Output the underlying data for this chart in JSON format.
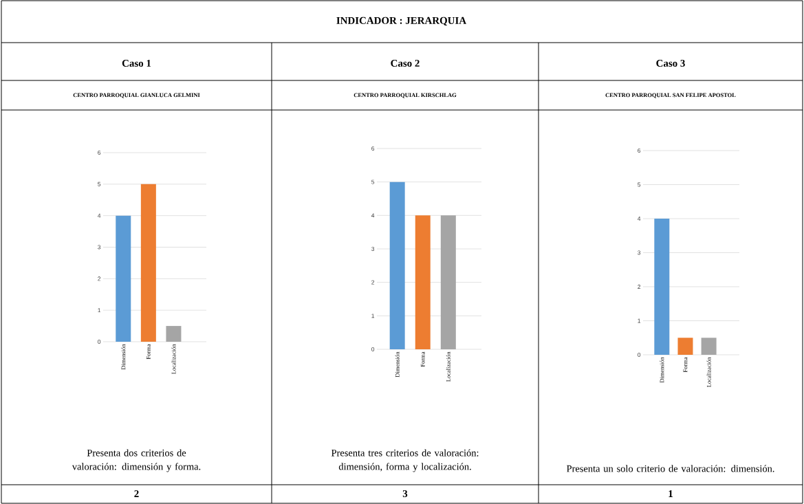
{
  "chart_data": [
    {
      "type": "bar",
      "title": "Caso 1",
      "subtitle": "CENTRO PARROQUIAL GIANLUCA GELMINI",
      "categories": [
        "Dimensión",
        "Forma",
        "Localización"
      ],
      "values": [
        4,
        5,
        0.5
      ],
      "colors": [
        "#5b9bd5",
        "#ed7d31",
        "#a5a5a5"
      ],
      "ylim": [
        0,
        6
      ],
      "yticks": [
        0,
        1,
        2,
        3,
        4,
        5,
        6
      ],
      "grid": "y",
      "annotations": [
        "INDICADOR : JERARQUIA",
        "Presenta dos criterios de valoración: dimensión y forma.",
        "2"
      ]
    },
    {
      "type": "bar",
      "title": "Caso 2",
      "subtitle": "CENTRO PARROQUIAL KIRSCHLAG",
      "categories": [
        "Dimensión",
        "Forma",
        "Localización"
      ],
      "values": [
        5,
        4,
        4
      ],
      "colors": [
        "#5b9bd5",
        "#ed7d31",
        "#a5a5a5"
      ],
      "ylim": [
        0,
        6
      ],
      "yticks": [
        0,
        1,
        2,
        3,
        4,
        5,
        6
      ],
      "grid": "y",
      "annotations": [
        "Presenta tres criterios de valoración: dimensión, forma y localización.",
        "3"
      ]
    },
    {
      "type": "bar",
      "title": "Caso 3",
      "subtitle": "CENTRO PARROQUIAL SAN FELIPE APOSTOL",
      "categories": [
        "Dimensión",
        "Forma",
        "Localización"
      ],
      "values": [
        4,
        0.5,
        0.5
      ],
      "colors": [
        "#5b9bd5",
        "#ed7d31",
        "#a5a5a5"
      ],
      "ylim": [
        0,
        6
      ],
      "yticks": [
        0,
        1,
        2,
        3,
        4,
        5,
        6
      ],
      "grid": "y",
      "annotations": [
        "Presenta un solo criterio de valoración: dimensión.",
        "1"
      ]
    }
  ]
}
